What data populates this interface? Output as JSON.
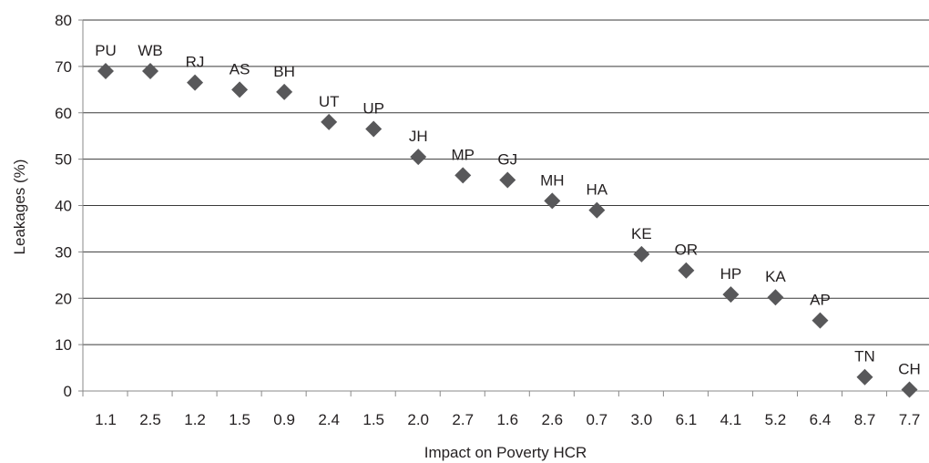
{
  "chart_data": {
    "type": "scatter",
    "title": "",
    "xlabel": "Impact on Poverty HCR",
    "ylabel": "Leakages (%)",
    "ylim": [
      0,
      80
    ],
    "yticks": [
      "0",
      "10",
      "20",
      "30",
      "40",
      "50",
      "60",
      "70",
      "80"
    ],
    "grid": true,
    "legend": "none",
    "marker": "diamond",
    "colors": {
      "marker": "#58585a",
      "grid": "#3a3a3a",
      "axis": "#8a8a8a",
      "text": "#231f20"
    },
    "points": [
      {
        "label": "PU",
        "x": "1.1",
        "y": 69
      },
      {
        "label": "WB",
        "x": "2.5",
        "y": 69
      },
      {
        "label": "RJ",
        "x": "1.2",
        "y": 66.5
      },
      {
        "label": "AS",
        "x": "1.5",
        "y": 65
      },
      {
        "label": "BH",
        "x": "0.9",
        "y": 64.5
      },
      {
        "label": "UT",
        "x": "2.4",
        "y": 58
      },
      {
        "label": "UP",
        "x": "1.5",
        "y": 56.5
      },
      {
        "label": "JH",
        "x": "2.0",
        "y": 50.5
      },
      {
        "label": "MP",
        "x": "2.7",
        "y": 46.5
      },
      {
        "label": "GJ",
        "x": "1.6",
        "y": 45.5
      },
      {
        "label": "MH",
        "x": "2.6",
        "y": 41
      },
      {
        "label": "HA",
        "x": "0.7",
        "y": 39
      },
      {
        "label": "KE",
        "x": "3.0",
        "y": 29.5
      },
      {
        "label": "OR",
        "x": "6.1",
        "y": 26
      },
      {
        "label": "HP",
        "x": "4.1",
        "y": 20.8
      },
      {
        "label": "KA",
        "x": "5.2",
        "y": 20.2
      },
      {
        "label": "AP",
        "x": "6.4",
        "y": 15.2
      },
      {
        "label": "TN",
        "x": "8.7",
        "y": 3
      },
      {
        "label": "CH",
        "x": "7.7",
        "y": 0.3
      }
    ]
  }
}
